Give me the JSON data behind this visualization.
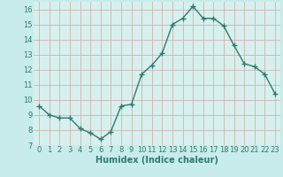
{
  "x": [
    0,
    1,
    2,
    3,
    4,
    5,
    6,
    7,
    8,
    9,
    10,
    11,
    12,
    13,
    14,
    15,
    16,
    17,
    18,
    19,
    20,
    21,
    22,
    23
  ],
  "y": [
    9.6,
    9.0,
    8.8,
    8.8,
    8.1,
    7.8,
    7.4,
    7.9,
    9.6,
    9.7,
    11.7,
    12.3,
    13.1,
    15.0,
    15.4,
    16.2,
    15.4,
    15.4,
    14.9,
    13.6,
    12.4,
    12.2,
    11.7,
    10.4
  ],
  "xlabel": "Humidex (Indice chaleur)",
  "xlim": [
    -0.5,
    23.5
  ],
  "ylim": [
    7,
    16.5
  ],
  "yticks": [
    7,
    8,
    9,
    10,
    11,
    12,
    13,
    14,
    15,
    16
  ],
  "xticks": [
    0,
    1,
    2,
    3,
    4,
    5,
    6,
    7,
    8,
    9,
    10,
    11,
    12,
    13,
    14,
    15,
    16,
    17,
    18,
    19,
    20,
    21,
    22,
    23
  ],
  "line_color": "#2d7b6f",
  "bg_color": "#c8ecea",
  "grid_color": "#c8a8a8",
  "plot_bg_color": "#d8f0ed",
  "marker": "+",
  "markersize": 4,
  "linewidth": 1.0,
  "xlabel_fontsize": 7,
  "tick_fontsize": 6
}
